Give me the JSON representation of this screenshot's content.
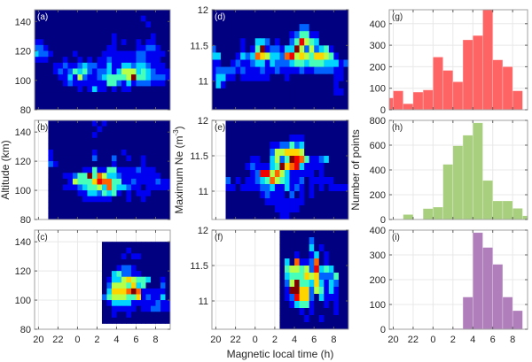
{
  "figure": {
    "xlabel": "Magnetic local time (h)",
    "ylabel_left": "Altitude (km)",
    "ylabel_middle": "Maximum Ne (m",
    "ylabel_middle_sup": "-3",
    "ylabel_middle_end": ")",
    "ylabel_right": "Number of points"
  },
  "x_axis": {
    "ticks": [
      20,
      22,
      0,
      2,
      4,
      6,
      8
    ],
    "xlim_mlt": [
      19.6,
      9.5
    ]
  },
  "chart_data": [
    {
      "label": "(a)",
      "type": "heatmap",
      "colormap": "jet",
      "ylim": [
        80,
        148
      ],
      "yticks": [
        80,
        100,
        120,
        140
      ],
      "x_start_mlt": 19.5,
      "x_step_h": 0.5,
      "y_top": 148,
      "y_step": 4,
      "label_color": "#ffffff",
      "levels": [
        "0000000000000000000000000000",
        "0000000000000000000000100000",
        "0000000000000000000000010000",
        "0000000000000000000000000000",
        "0000000000000000100000001000",
        "1100000000000000101001011000",
        "2210000000000001100001122100",
        "3221000010000011111112211110",
        "1110001001010112111112211100",
        "0000112112322113113323321110",
        "0000121243421223135553432111",
        "0000011315211234444594432221",
        "0000001211111114421312221110",
        "0000000001013110101100000000",
        "0000000000000000000000000000",
        "0000000000000000000000000000",
        "0000000000000000000000000000"
      ]
    },
    {
      "label": "(b)",
      "type": "heatmap",
      "colormap": "jet",
      "ylim": [
        80,
        148
      ],
      "yticks": [
        80,
        100,
        120,
        140
      ],
      "x_start_mlt": 19.5,
      "x_step_h": 0.5,
      "y_top": 148,
      "y_step": 4,
      "label_color": "#262626",
      "levels": [
        "...0000000001010000000000000",
        "...0000000000100000000000000",
        "...0000000001000000000000000",
        "...0000000000000000000000000",
        "...0000000000000000000000000",
        "...1000000001000001000000000",
        "...1000000002000200100100000",
        "...2100000000000100000100000",
        "...0000000114114411112111000",
        "...0001124494753321111111100",
        "...0000154446877441121111211",
        "...0001112344537433211011111",
        "...0000001133243410101110000",
        "...0000000111111000100100000",
        "...0000000000000000000000000",
        "...0000000000000000000000000",
        "...0000000000000000000000000"
      ]
    },
    {
      "label": "(c)",
      "type": "heatmap",
      "colormap": "jet",
      "ylim": [
        80,
        148
      ],
      "yticks": [
        80,
        100,
        120,
        140
      ],
      "x_start_mlt": 19.5,
      "x_step_h": 0.5,
      "y_top": 148,
      "y_step": 4,
      "label_color": "#262626",
      "levels": [
        "............................",
        "............................",
        "..............00000000000000",
        "..............00000100000000",
        "..............00001011000000",
        "..............00000000000000",
        "..............00012210000000",
        "..............00342211000000",
        "..............01335654430010",
        "..............02555463400020",
        "..............03666797111110",
        "..............24555446121130",
        "..............01333311111211",
        "..............00111110112211",
        "..............00100100000000",
        "..............00000000000000",
        "............................"
      ]
    },
    {
      "label": "(d)",
      "type": "heatmap",
      "colormap": "jet",
      "ylim": [
        10.6,
        12
      ],
      "yticks": [
        11,
        11.5,
        12
      ],
      "x_start_mlt": 19.5,
      "x_step_h": 0.5,
      "y_top": 12,
      "y_step": 0.1,
      "label_color": "#ffffff",
      "levels": [
        "0000000000000000000000000000",
        "0000000000000000000000000000",
        "0000000000000000002200000000",
        "0000000000000000124411000000",
        "0000001003320100248543000000",
        "2000001014912213395252341000",
        "3300013237653327856546654100",
        "1100121123313222344344433312",
        "1222212111211211112112222110",
        "1331101111110001000000000110",
        "0310000000000000000000000100",
        "0000000000000000000000000110",
        "0000000000000000000000000000",
        "0000000000000000000000000000"
      ]
    },
    {
      "label": "(e)",
      "type": "heatmap",
      "colormap": "jet",
      "ylim": [
        10.6,
        12
      ],
      "yticks": [
        11,
        11.5,
        12
      ],
      "x_start_mlt": 19.5,
      "x_step_h": 0.5,
      "y_top": 12,
      "y_step": 0.1,
      "label_color": "#262626",
      "levels": [
        "...0000000000000000000000000",
        "...0000000000000000000000000",
        "...0000000000000111000000000",
        "...0000000001122423000000000",
        "...0000000002556665000000000",
        "...0000011003524987411230000",
        "...0000121113496783111100000",
        "...0000012885753111110100000",
        "...2010112347543112011111000",
        "...1101111223113121010101111",
        "...0000000121110201010000000",
        "...0000000011111111000000000",
        "...0000000000111110000000000",
        "...0000000000011000000000000"
      ]
    },
    {
      "label": "(f)",
      "type": "heatmap",
      "colormap": "jet",
      "ylim": [
        10.6,
        12
      ],
      "yticks": [
        11,
        11.5,
        12
      ],
      "x_start_mlt": 19.5,
      "x_step_h": 0.5,
      "y_top": 12,
      "y_step": 0.1,
      "label_color": "#262626",
      "levels": [
        "..............00000000000000",
        "..............00000020000000",
        "..............00000030100000",
        "..............00010013010000",
        "..............03071127010000",
        "..............04554528343000",
        "..............03444656222400",
        "..............02594436313200",
        "..............01996625413100",
        "..............01286620311100",
        "..............00134410010100",
        "..............00001010000100",
        "..............00000100100000",
        "..............00000000000000"
      ]
    },
    {
      "label": "(g)",
      "type": "bar",
      "color": "#ff6464",
      "ylim": [
        0,
        465
      ],
      "yticks": [
        0,
        100,
        200,
        300,
        400
      ],
      "label_color": "#262626",
      "bin_start_mlt": [
        19,
        20,
        21,
        22,
        23,
        0,
        1,
        2,
        3,
        4,
        5,
        6,
        7,
        8
      ],
      "values": [
        55,
        88,
        28,
        82,
        92,
        245,
        183,
        130,
        325,
        345,
        470,
        232,
        200,
        88
      ]
    },
    {
      "label": "(h)",
      "type": "bar",
      "color": "#a8cf7e",
      "ylim": [
        0,
        800
      ],
      "yticks": [
        0,
        200,
        400,
        600,
        800
      ],
      "label_color": "#262626",
      "bin_start_mlt": [
        21,
        23,
        0,
        1,
        2,
        3,
        4,
        5,
        6,
        7,
        8,
        9
      ],
      "values": [
        40,
        88,
        100,
        445,
        595,
        680,
        780,
        315,
        150,
        150,
        90,
        30
      ]
    },
    {
      "label": "(i)",
      "type": "bar",
      "color": "#b07fbb",
      "ylim": [
        0,
        400
      ],
      "yticks": [
        0,
        100,
        200,
        300,
        400
      ],
      "label_color": "#262626",
      "bin_start_mlt": [
        2,
        3,
        4,
        5,
        6,
        7,
        8
      ],
      "values": [
        3,
        130,
        390,
        330,
        262,
        130,
        75
      ]
    }
  ]
}
